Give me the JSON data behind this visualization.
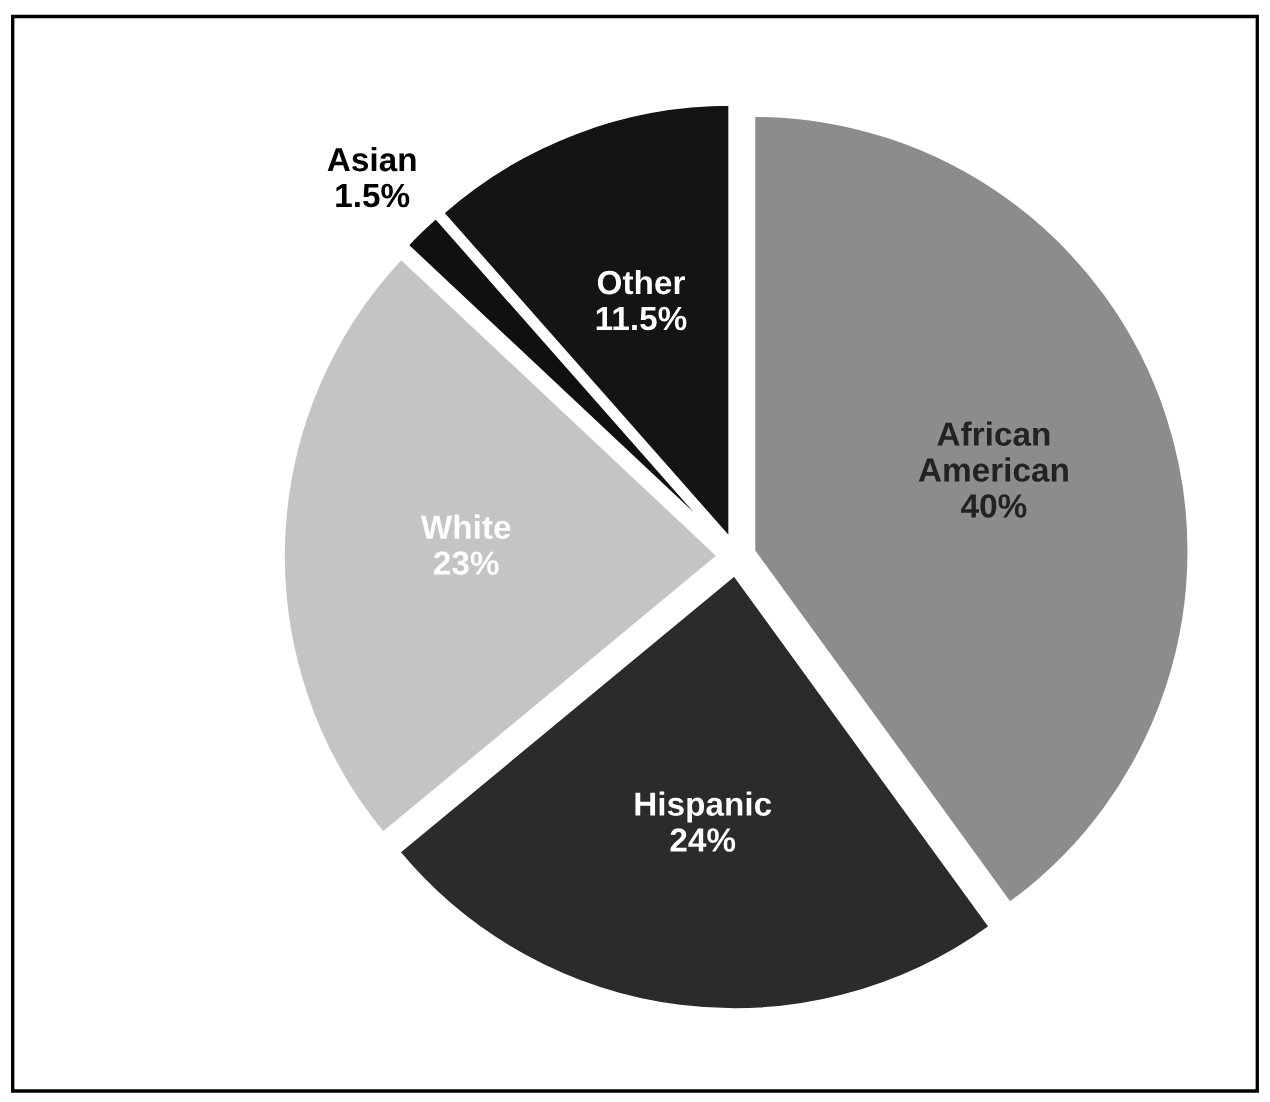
{
  "chart_data": {
    "type": "pie",
    "categories": [
      "African\nAmerican",
      "Hispanic",
      "White",
      "Asian",
      "Other"
    ],
    "values": [
      40,
      24,
      23,
      1.5,
      11.5
    ],
    "value_labels": [
      "40%",
      "24%",
      "23%",
      "1.5%",
      "11.5%"
    ],
    "colors": [
      "#8c8c8c",
      "#2b2b2b",
      "#c4c4c4",
      "#101010",
      "#141414"
    ],
    "legend": false
  }
}
